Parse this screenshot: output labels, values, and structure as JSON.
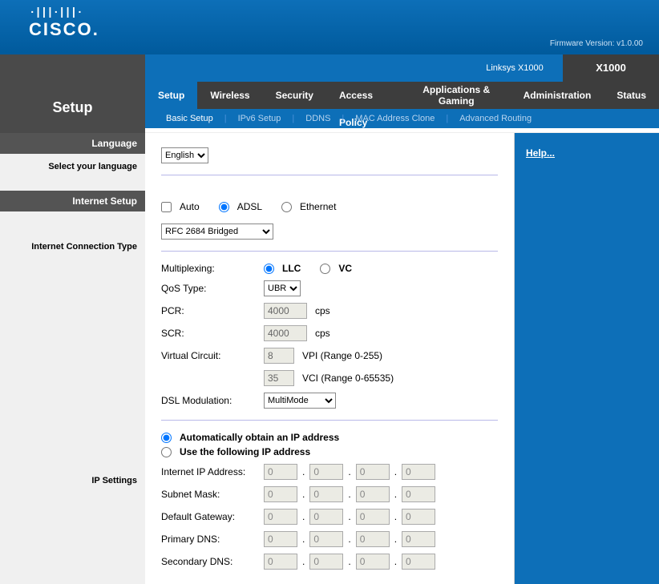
{
  "header": {
    "logo_bars": "·|||·|||·",
    "logo_text": "CISCO",
    "firmware": "Firmware Version: v1.0.00",
    "linksys": "Linksys X1000",
    "model": "X1000",
    "page_title": "Setup"
  },
  "tabs": [
    "Setup",
    "Wireless",
    "Security",
    "Access Policy",
    "Applications & Gaming",
    "Administration",
    "Status"
  ],
  "active_tab": 0,
  "subtabs": [
    "Basic Setup",
    "IPv6 Setup",
    "DDNS",
    "MAC Address Clone",
    "Advanced Routing"
  ],
  "active_subtab": 0,
  "sections": {
    "language": {
      "header": "Language",
      "sub": "Select your language",
      "value": "English"
    },
    "internet_setup": {
      "header": "Internet Setup"
    },
    "connection_type": {
      "sub": "Internet Connection Type",
      "auto_label": "Auto",
      "adsl_label": "ADSL",
      "ethernet_label": "Ethernet",
      "mode": "ADSL",
      "encap": "RFC 2684 Bridged",
      "multiplexing_label": "Multiplexing:",
      "mux_llc": "LLC",
      "mux_vc": "VC",
      "mux": "LLC",
      "qos_label": "QoS Type:",
      "qos": "UBR",
      "pcr_label": "PCR:",
      "pcr": "4000",
      "pcr_unit": "cps",
      "scr_label": "SCR:",
      "scr": "4000",
      "scr_unit": "cps",
      "vc_label": "Virtual Circuit:",
      "vpi": "8",
      "vpi_unit": "VPI (Range 0-255)",
      "vci": "35",
      "vci_unit": "VCI (Range 0-65535)",
      "dslmod_label": "DSL Modulation:",
      "dslmod": "MultiMode"
    },
    "ip": {
      "sub": "IP Settings",
      "auto_label": "Automatically obtain an IP address",
      "static_label": "Use the following IP address",
      "mode": "auto",
      "fields": [
        {
          "label": "Internet IP Address:",
          "v": [
            "0",
            "0",
            "0",
            "0"
          ]
        },
        {
          "label": "Subnet Mask:",
          "v": [
            "0",
            "0",
            "0",
            "0"
          ]
        },
        {
          "label": "Default Gateway:",
          "v": [
            "0",
            "0",
            "0",
            "0"
          ]
        },
        {
          "label": "Primary DNS:",
          "v": [
            "0",
            "0",
            "0",
            "0"
          ]
        },
        {
          "label": "Secondary DNS:",
          "v": [
            "0",
            "0",
            "0",
            "0"
          ]
        }
      ]
    }
  },
  "help": "Help..."
}
